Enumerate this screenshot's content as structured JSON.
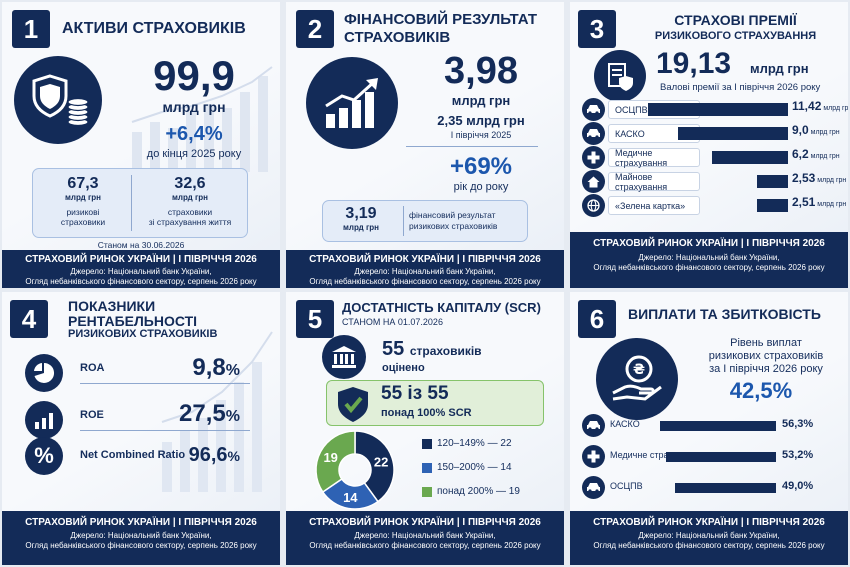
{
  "footer": {
    "line1": "СТРАХОВИЙ РИНОК УКРАЇНИ  |  І ПІВРІЧЧЯ 2026",
    "source_a": "Джерело: Національний банк України,",
    "source_b": "Огляд небанківського фінансового сектору, серпень 2026 року"
  },
  "card1": {
    "number": "1",
    "title": "АКТИВИ СТРАХОВИКІВ",
    "value": "99,9",
    "unit": "млрд грн",
    "growth": "+6,4%",
    "growth_note": "до кінця 2025 року",
    "split": [
      {
        "value": "67,3",
        "unit": "млрд грн",
        "label1": "ризикові",
        "label2": "страховики"
      },
      {
        "value": "32,6",
        "unit": "млрд грн",
        "label1": "страховики",
        "label2": "зі страхування життя"
      }
    ],
    "date_note": "Станом на 30.06.2026"
  },
  "card2": {
    "number": "2",
    "title1": "ФІНАНСОВИЙ РЕЗУЛЬТАТ",
    "title2": "СТРАХОВИКІВ",
    "value": "3,98",
    "unit": "млрд грн",
    "prev_value": "2,35 млрд грн",
    "prev_note": "І півріччя 2025",
    "growth": "+69%",
    "growth_note": "рік до року",
    "risk_value": "3,19",
    "risk_unit": "млрд грн",
    "risk_label1": "фінансовий результат",
    "risk_label2": "ризикових страховиків"
  },
  "card3": {
    "number": "3",
    "title1": "СТРАХОВІ ПРЕМІЇ",
    "title2": "РИЗИКОВОГО СТРАХУВАННЯ",
    "value": "19,13",
    "unit": "млрд грн",
    "note": "Валові премії за І півріччя 2026 року"
  },
  "card4": {
    "number": "4",
    "title1": "ПОКАЗНИКИ",
    "title2": "РЕНТАБЕЛЬНОСТІ",
    "title3": "РИЗИКОВИХ СТРАХОВИКІВ",
    "rows": [
      {
        "label": "ROA",
        "value": "9,8",
        "pct": "%",
        "icon": "pie-chart-icon"
      },
      {
        "label": "ROE",
        "value": "27,5",
        "pct": "%",
        "icon": "bar-chart-icon"
      },
      {
        "label": "Net Combined Ratio",
        "value": "96,6",
        "pct": "%",
        "icon": "percent-icon"
      }
    ]
  },
  "card5": {
    "number": "5",
    "title": "ДОСТАТНІСТЬ КАПІТАЛУ (SCR)",
    "date_note": "СТАНОМ НА 01.07.2026",
    "insurers_count": "55",
    "insurers_label": "страховиків",
    "insurers_note": "оцінено",
    "badge_value": "55 із 55",
    "badge_note": "понад 100% SCR"
  },
  "card6": {
    "number": "6",
    "title": "ВИПЛАТИ ТА ЗБИТКОВІСТЬ",
    "lead1": "Рівень виплат",
    "lead2": "ризикових страховиків",
    "lead3": "за І півріччя 2026 року",
    "value": "42,5%"
  },
  "chart_data": [
    {
      "type": "bar",
      "categories": [
        "ОСЦПВ",
        "КАСКО",
        "Медичне страхування",
        "Майнове страхування",
        "«Зелена картка»"
      ],
      "values": [
        11.42,
        9.0,
        6.2,
        2.53,
        2.51
      ],
      "labels": [
        "11,42",
        "9,0",
        "6,2",
        "2,53",
        "2,51"
      ],
      "unit": "млрд грн",
      "icons": [
        "car-icon",
        "car-icon",
        "medical-cross-icon",
        "house-icon",
        "globe-icon"
      ]
    },
    {
      "type": "pie",
      "categories": [
        "120–149%",
        "150–200%",
        "понад 200%"
      ],
      "values": [
        22,
        14,
        19
      ],
      "colors": [
        "#132b58",
        "#2e62b4",
        "#6aa84f"
      ]
    },
    {
      "type": "bar",
      "categories": [
        "КАСКО",
        "Медичне страхування",
        "ОСЦПВ"
      ],
      "values": [
        56.3,
        53.2,
        49.0
      ],
      "labels": [
        "56,3%",
        "53,2%",
        "49,0%"
      ],
      "icons": [
        "car-icon",
        "medical-cross-icon",
        "car-icon"
      ]
    }
  ]
}
